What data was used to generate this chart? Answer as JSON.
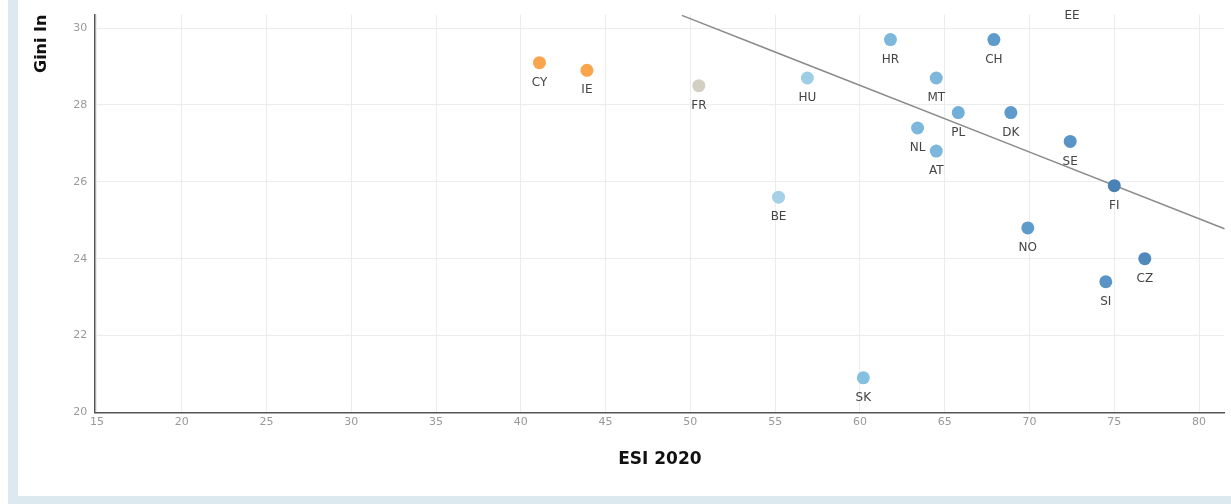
{
  "chart_data": {
    "type": "scatter",
    "xlabel": "ESI 2020",
    "ylabel": "Gini In",
    "xlim": [
      14.9,
      81.5
    ],
    "xticks": [
      15,
      20,
      25,
      30,
      35,
      40,
      45,
      50,
      55,
      60,
      65,
      70,
      75,
      80
    ],
    "ylim": [
      20,
      30.35
    ],
    "yticks": [
      20,
      22,
      24,
      26,
      28,
      30
    ],
    "grid": true,
    "legend": false,
    "marker": "circle",
    "series": [
      {
        "x": [
          41.1,
          43.9,
          50.5,
          56.9,
          55.2,
          61.8,
          67.9,
          64.5,
          65.8,
          68.9,
          63.4,
          64.5,
          72.4,
          75.0,
          69.9,
          60.2,
          76.8,
          74.5
        ],
        "values": [
          29.1,
          28.9,
          28.5,
          28.7,
          25.6,
          29.7,
          29.7,
          28.7,
          27.8,
          27.8,
          27.4,
          26.8,
          27.05,
          25.9,
          24.8,
          20.9,
          24.0,
          23.4
        ],
        "colors": [
          "#f8a54d",
          "#f8a54d",
          "#d3cfc3",
          "#9ecde6",
          "#a4d0e8",
          "#7db8dc",
          "#5e9bcb",
          "#7db8dc",
          "#72afd8",
          "#5e9bcb",
          "#7db8dc",
          "#7db8dc",
          "#5a94c6",
          "#4a82b6",
          "#5e9bcb",
          "#86c0e0",
          "#4f89bc",
          "#5a94c6"
        ]
      },
      {
        "type": "line",
        "x": [
          49.5,
          81.5
        ],
        "values": [
          30.33,
          24.78
        ],
        "color": "#8a8a8a",
        "line_style": "solid",
        "marker": "none"
      }
    ],
    "annotations": [
      {
        "text": "CY",
        "x": 41.1,
        "y": 29.1
      },
      {
        "text": "IE",
        "x": 43.9,
        "y": 28.9
      },
      {
        "text": "FR",
        "x": 50.5,
        "y": 28.5
      },
      {
        "text": "HU",
        "x": 56.9,
        "y": 28.7
      },
      {
        "text": "BE",
        "x": 55.2,
        "y": 25.6
      },
      {
        "text": "HR",
        "x": 61.8,
        "y": 29.7
      },
      {
        "text": "CH",
        "x": 67.9,
        "y": 29.7
      },
      {
        "text": "MT",
        "x": 64.5,
        "y": 28.7
      },
      {
        "text": "PL",
        "x": 65.8,
        "y": 27.8
      },
      {
        "text": "DK",
        "x": 68.9,
        "y": 27.8
      },
      {
        "text": "NL",
        "x": 63.4,
        "y": 27.4
      },
      {
        "text": "AT",
        "x": 64.5,
        "y": 26.8
      },
      {
        "text": "SE",
        "x": 72.4,
        "y": 27.05
      },
      {
        "text": "FI",
        "x": 75.0,
        "y": 25.9
      },
      {
        "text": "NO",
        "x": 69.9,
        "y": 24.8
      },
      {
        "text": "SK",
        "x": 60.2,
        "y": 20.9
      },
      {
        "text": "CZ",
        "x": 76.8,
        "y": 24.0
      },
      {
        "text": "SI",
        "x": 74.5,
        "y": 23.4
      },
      "EE"
    ]
  }
}
